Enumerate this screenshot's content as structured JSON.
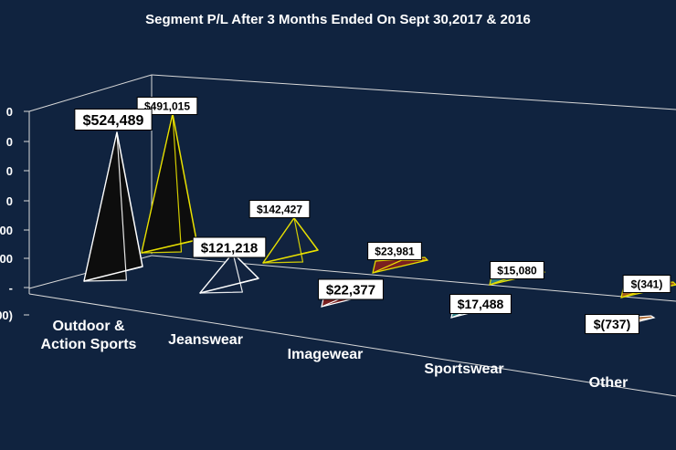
{
  "chart_data": {
    "type": "bar",
    "title": "Segment P/L After 3 Months Ended On Sept 30,2017 & 2016",
    "categories": [
      "Outdoor & Action Sports",
      "Jeanswear",
      "Imagewear",
      "Sportswear",
      "Other"
    ],
    "category_lines": [
      [
        "Outdoor &",
        "Action Sports"
      ],
      [
        "Jeanswear"
      ],
      [
        "Imagewear"
      ],
      [
        "Sportswear"
      ],
      [
        "Other"
      ]
    ],
    "series": [
      {
        "values": [
          524489,
          121218,
          22377,
          17488,
          -737
        ],
        "data_labels": [
          "$524,489",
          "$121,218",
          "$22,377",
          "$17,488",
          "$(737)"
        ]
      },
      {
        "values": [
          491015,
          142427,
          23981,
          15080,
          -341
        ],
        "data_labels": [
          "$491,015",
          "$142,427",
          "$23,981",
          "$15,080",
          "$(341)"
        ]
      }
    ],
    "y_tick_labels": [
      "0",
      "0",
      "0",
      "0",
      "00",
      "00",
      "-",
      "00)"
    ],
    "ylim": [
      -100000,
      600000
    ],
    "grid": false,
    "legend": "none",
    "colors": {
      "background": "#10233f",
      "front": [
        "#0d0d0d",
        "#12233f",
        "#7a2020",
        "#2f7f84",
        "#a35a1e"
      ],
      "back": [
        "#0d0d0d",
        "#12233f",
        "#7a2020",
        "#2f7f84",
        "#a35a1e"
      ],
      "front_stroke": "#ffffff",
      "back_stroke": "#e8e000",
      "axis": "#d9d9d9",
      "text": "#ffffff"
    }
  }
}
